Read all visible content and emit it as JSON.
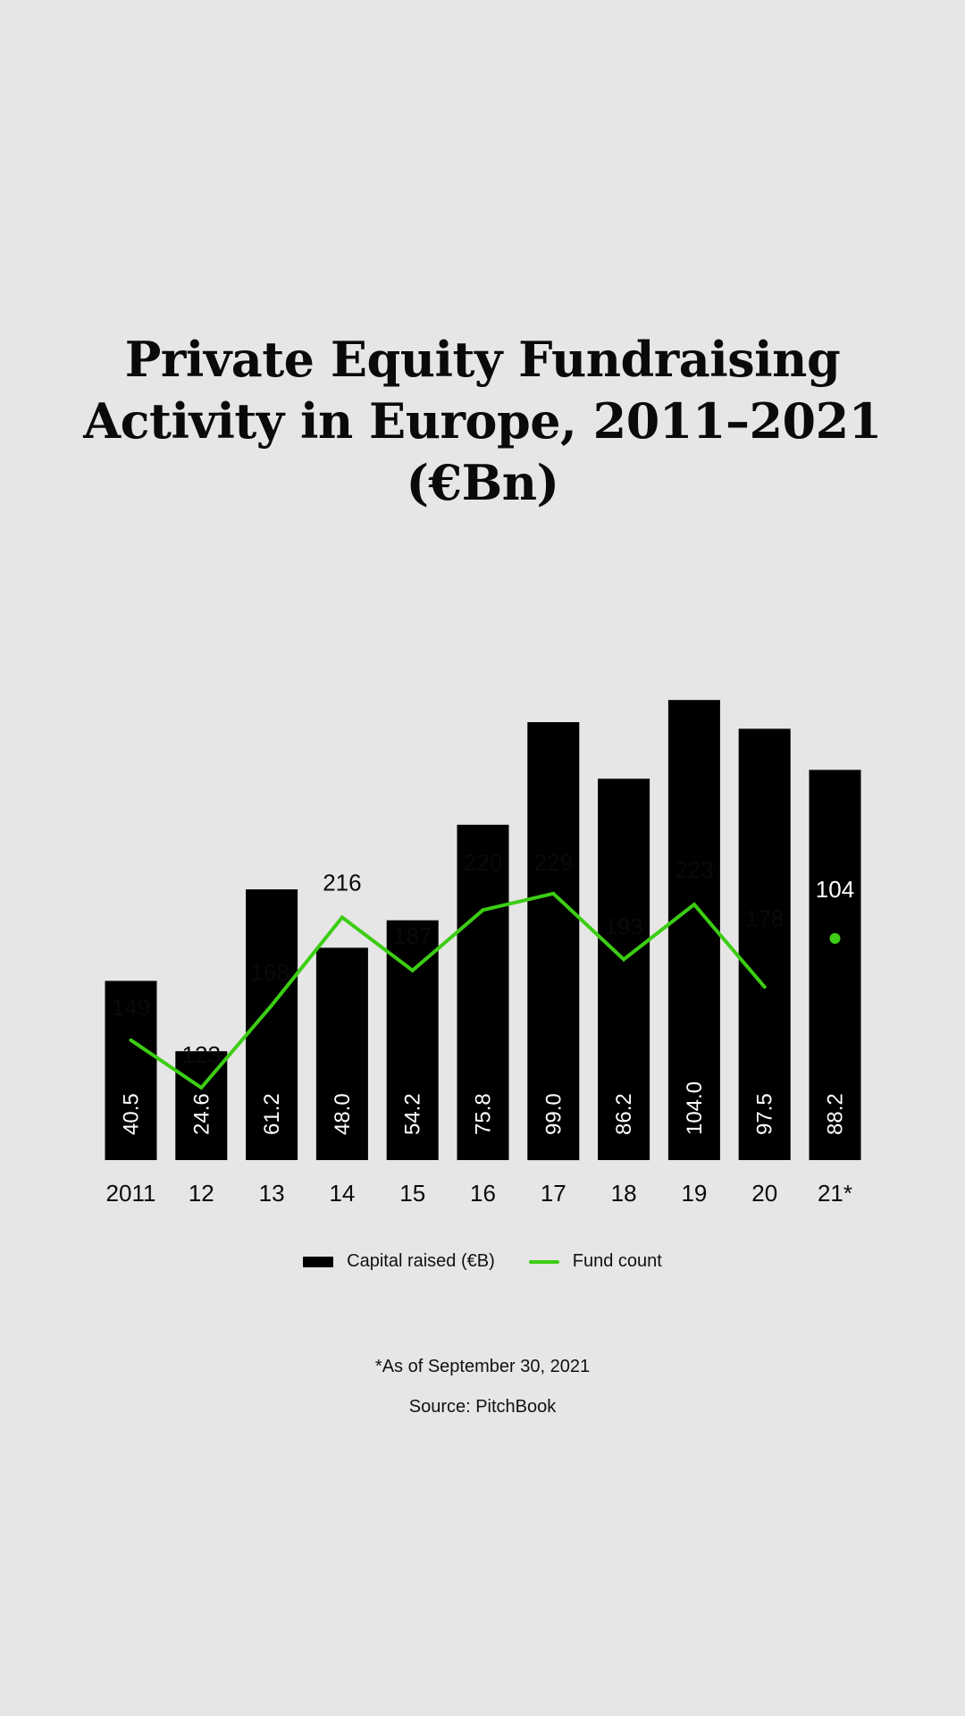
{
  "title_lines": [
    "Private Equity Fundraising",
    "Activity in Europe, 2011–2021",
    "(€Bn)"
  ],
  "legend": {
    "capital_label": "Capital raised (€B)",
    "fund_label": "Fund count"
  },
  "footnote": "*As of September 30, 2021",
  "source": "Source: PitchBook",
  "colors": {
    "background": "#e6e6e6",
    "bar": "#000000",
    "line": "#3ccd14",
    "text": "#0a0a0a"
  },
  "chart_data": {
    "type": "bar",
    "title": "Private Equity Fundraising Activity in Europe, 2011–2021 (€Bn)",
    "categories": [
      "2011",
      "12",
      "13",
      "14",
      "15",
      "16",
      "17",
      "18",
      "19",
      "20",
      "21*"
    ],
    "series": [
      {
        "name": "Capital raised (€B)",
        "type": "bar",
        "values": [
          40.5,
          24.6,
          61.2,
          48.0,
          54.2,
          75.8,
          99.0,
          86.2,
          104.0,
          97.5,
          88.2
        ],
        "labels": [
          "40.5",
          "24.6",
          "61.2",
          "48.0",
          "54.2",
          "75.8",
          "99.0",
          "86.2",
          "104.0",
          "97.5",
          "88.2"
        ]
      },
      {
        "name": "Fund count",
        "type": "line",
        "values": [
          149,
          123,
          168,
          216,
          187,
          220,
          229,
          193,
          223,
          178,
          104
        ],
        "labels": [
          "149",
          "123",
          "168",
          "216",
          "187",
          "220",
          "229",
          "193",
          "223",
          "178",
          "104"
        ],
        "last_point_as_marker": true
      }
    ],
    "xlabel": "",
    "ylabel": "",
    "grid": false,
    "legend_position": "bottom"
  }
}
